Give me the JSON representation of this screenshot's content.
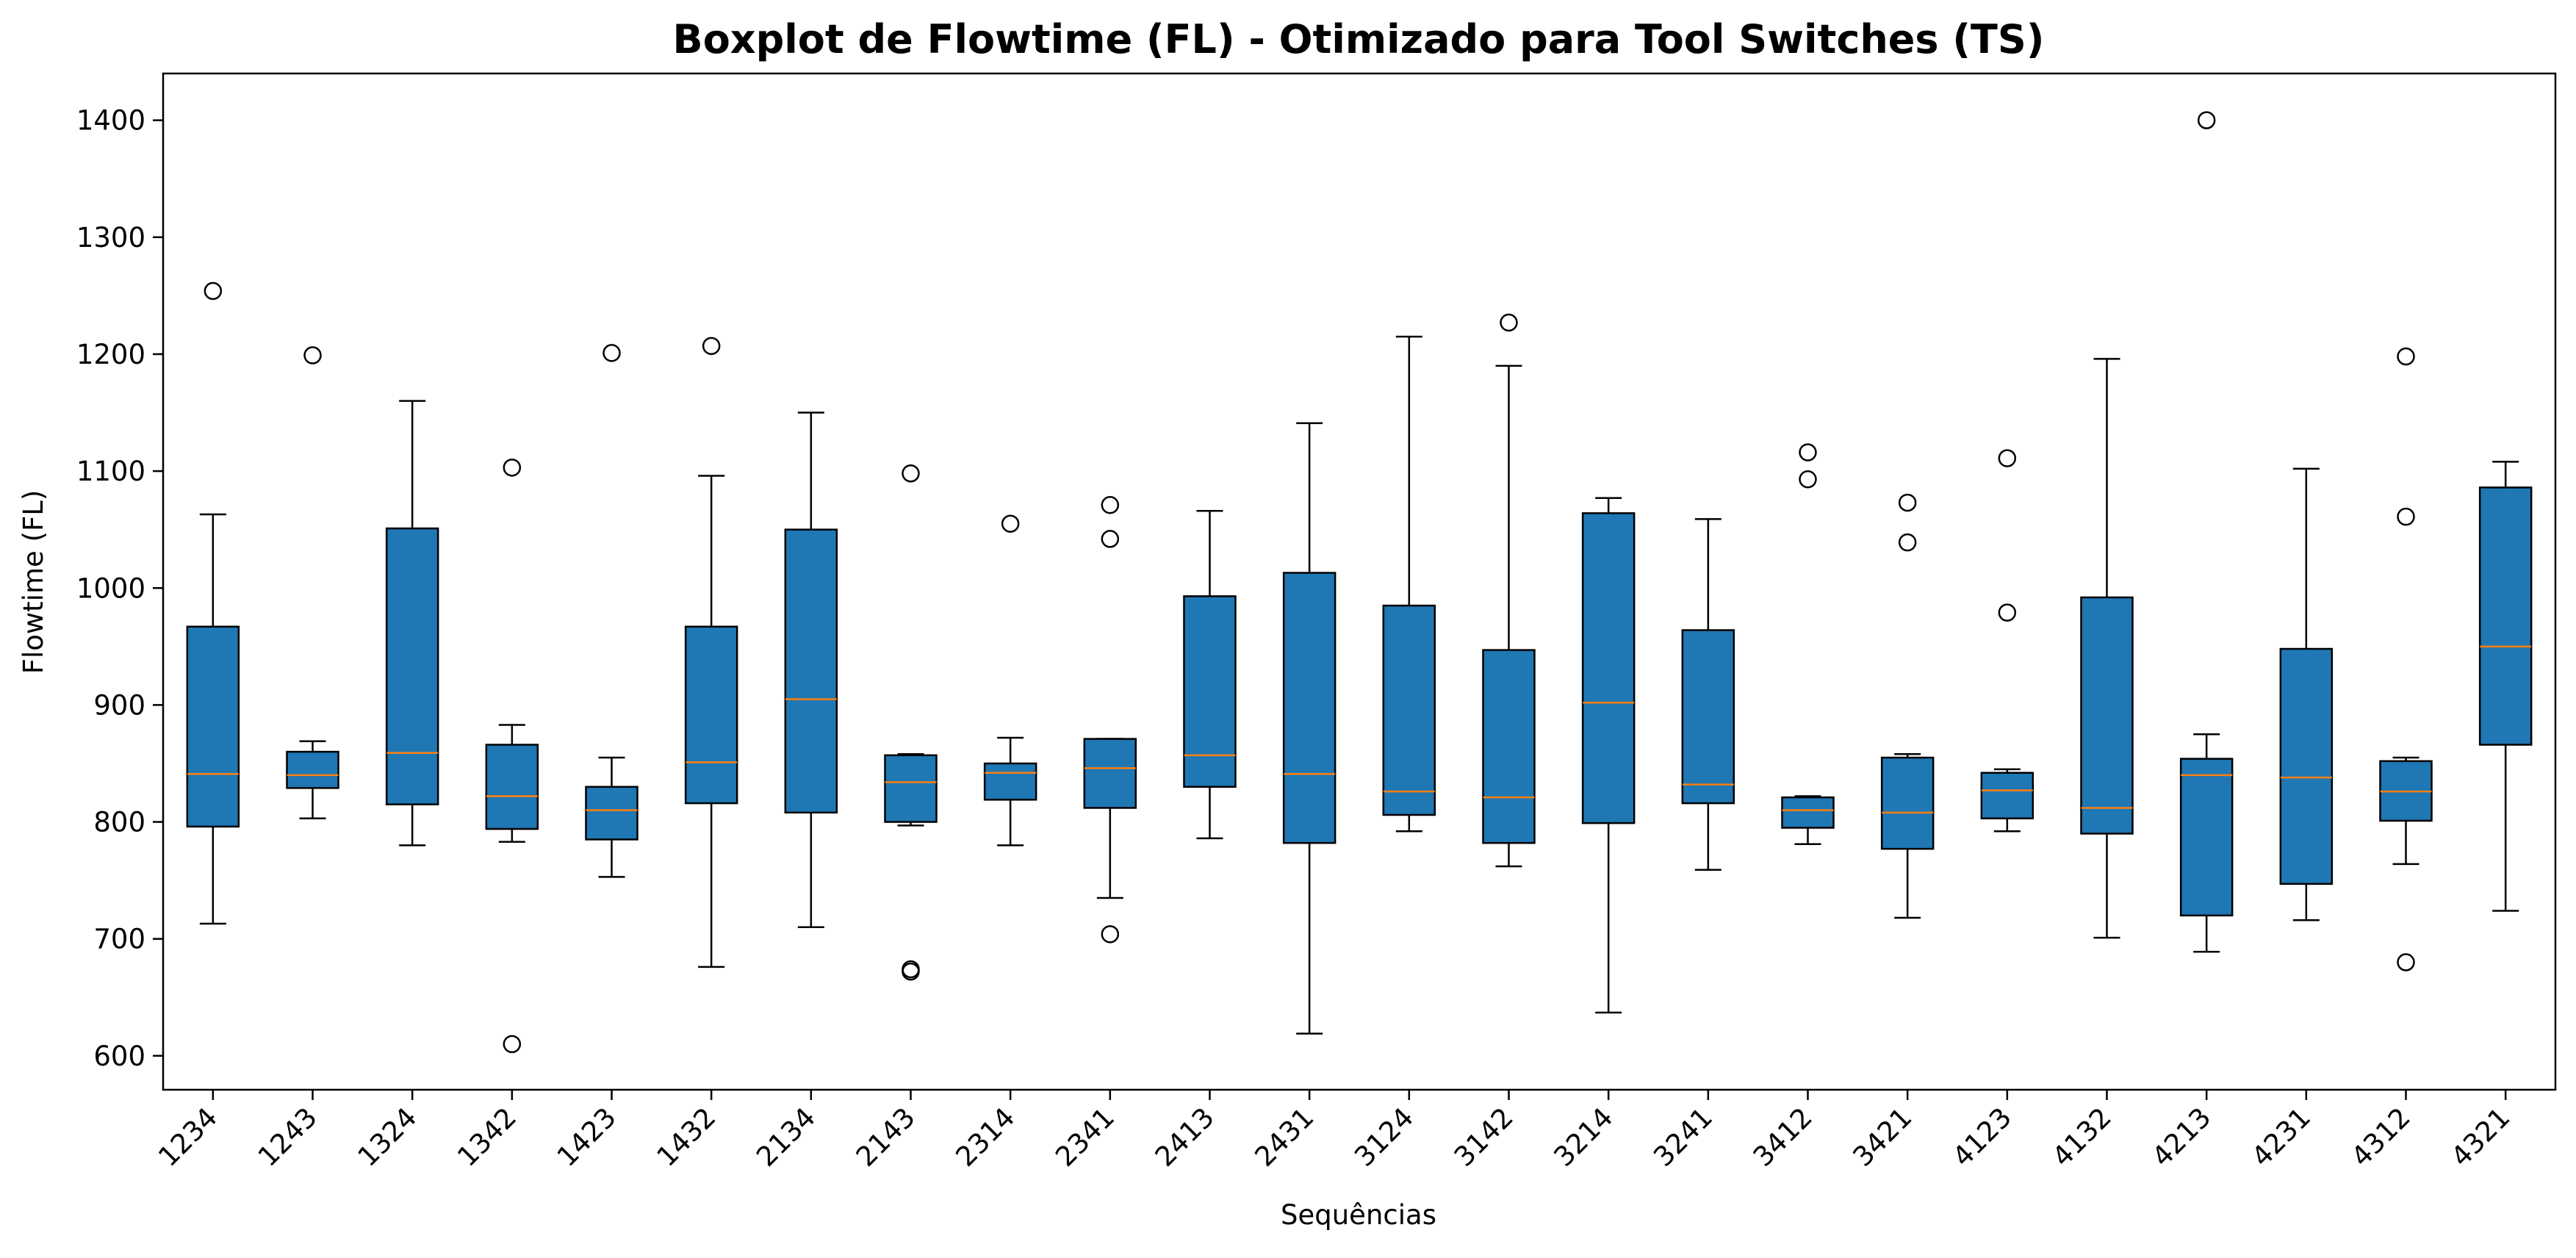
{
  "chart_data": {
    "type": "boxplot",
    "title": "Boxplot de Flowtime (FL) - Otimizado para Tool Switches (TS)",
    "xlabel": "Sequências",
    "ylabel": "Flowtime (FL)",
    "ylim": [
      571,
      1440
    ],
    "yticks": [
      600,
      700,
      800,
      900,
      1000,
      1100,
      1200,
      1300,
      1400
    ],
    "grid": false,
    "colors": {
      "box_fill": "#1f77b4",
      "median": "#ff7f0e",
      "edge": "#000000"
    },
    "categories": [
      "1234",
      "1243",
      "1324",
      "1342",
      "1423",
      "1432",
      "2134",
      "2143",
      "2314",
      "2341",
      "2413",
      "2431",
      "3124",
      "3142",
      "3214",
      "3241",
      "3412",
      "3421",
      "4123",
      "4132",
      "4213",
      "4231",
      "4312",
      "4321"
    ],
    "boxes": [
      {
        "category": "1234",
        "whisker_low": 713,
        "q1": 796,
        "median": 841,
        "q3": 967,
        "whisker_high": 1063,
        "outliers": [
          1254
        ]
      },
      {
        "category": "1243",
        "whisker_low": 803,
        "q1": 829,
        "median": 840,
        "q3": 860,
        "whisker_high": 869,
        "outliers": [
          1199
        ]
      },
      {
        "category": "1324",
        "whisker_low": 780,
        "q1": 815,
        "median": 859,
        "q3": 1051,
        "whisker_high": 1160,
        "outliers": []
      },
      {
        "category": "1342",
        "whisker_low": 783,
        "q1": 794,
        "median": 822,
        "q3": 866,
        "whisker_high": 883,
        "outliers": [
          1103,
          610
        ]
      },
      {
        "category": "1423",
        "whisker_low": 753,
        "q1": 785,
        "median": 810,
        "q3": 830,
        "whisker_high": 855,
        "outliers": [
          1201
        ]
      },
      {
        "category": "1432",
        "whisker_low": 676,
        "q1": 816,
        "median": 851,
        "q3": 967,
        "whisker_high": 1096,
        "outliers": [
          1207
        ]
      },
      {
        "category": "2134",
        "whisker_low": 710,
        "q1": 808,
        "median": 905,
        "q3": 1050,
        "whisker_high": 1150,
        "outliers": []
      },
      {
        "category": "2143",
        "whisker_low": 797,
        "q1": 800,
        "median": 834,
        "q3": 857,
        "whisker_high": 858,
        "outliers": [
          1098,
          674,
          672
        ]
      },
      {
        "category": "2314",
        "whisker_low": 780,
        "q1": 819,
        "median": 842,
        "q3": 850,
        "whisker_high": 872,
        "outliers": [
          1055
        ]
      },
      {
        "category": "2341",
        "whisker_low": 735,
        "q1": 812,
        "median": 846,
        "q3": 871,
        "whisker_high": 871,
        "outliers": [
          1071,
          1042,
          704
        ]
      },
      {
        "category": "2413",
        "whisker_low": 786,
        "q1": 830,
        "median": 857,
        "q3": 993,
        "whisker_high": 1066,
        "outliers": []
      },
      {
        "category": "2431",
        "whisker_low": 619,
        "q1": 782,
        "median": 841,
        "q3": 1013,
        "whisker_high": 1141,
        "outliers": []
      },
      {
        "category": "3124",
        "whisker_low": 792,
        "q1": 806,
        "median": 826,
        "q3": 985,
        "whisker_high": 1215,
        "outliers": []
      },
      {
        "category": "3142",
        "whisker_low": 762,
        "q1": 782,
        "median": 821,
        "q3": 947,
        "whisker_high": 1190,
        "outliers": [
          1227
        ]
      },
      {
        "category": "3214",
        "whisker_low": 637,
        "q1": 799,
        "median": 902,
        "q3": 1064,
        "whisker_high": 1077,
        "outliers": []
      },
      {
        "category": "3241",
        "whisker_low": 759,
        "q1": 816,
        "median": 832,
        "q3": 964,
        "whisker_high": 1059,
        "outliers": []
      },
      {
        "category": "3412",
        "whisker_low": 781,
        "q1": 795,
        "median": 810,
        "q3": 821,
        "whisker_high": 822,
        "outliers": [
          1116,
          1093
        ]
      },
      {
        "category": "3421",
        "whisker_low": 718,
        "q1": 777,
        "median": 808,
        "q3": 855,
        "whisker_high": 858,
        "outliers": [
          1073,
          1039
        ]
      },
      {
        "category": "4123",
        "whisker_low": 792,
        "q1": 803,
        "median": 827,
        "q3": 842,
        "whisker_high": 845,
        "outliers": [
          1111,
          979
        ]
      },
      {
        "category": "4132",
        "whisker_low": 701,
        "q1": 790,
        "median": 812,
        "q3": 992,
        "whisker_high": 1196,
        "outliers": []
      },
      {
        "category": "4213",
        "whisker_low": 689,
        "q1": 720,
        "median": 840,
        "q3": 854,
        "whisker_high": 875,
        "outliers": [
          1400
        ]
      },
      {
        "category": "4231",
        "whisker_low": 716,
        "q1": 747,
        "median": 838,
        "q3": 948,
        "whisker_high": 1102,
        "outliers": []
      },
      {
        "category": "4312",
        "whisker_low": 764,
        "q1": 801,
        "median": 826,
        "q3": 852,
        "whisker_high": 855,
        "outliers": [
          1198,
          1061,
          680
        ]
      },
      {
        "category": "4321",
        "whisker_low": 724,
        "q1": 866,
        "median": 950,
        "q3": 1086,
        "whisker_high": 1108,
        "outliers": []
      }
    ]
  }
}
